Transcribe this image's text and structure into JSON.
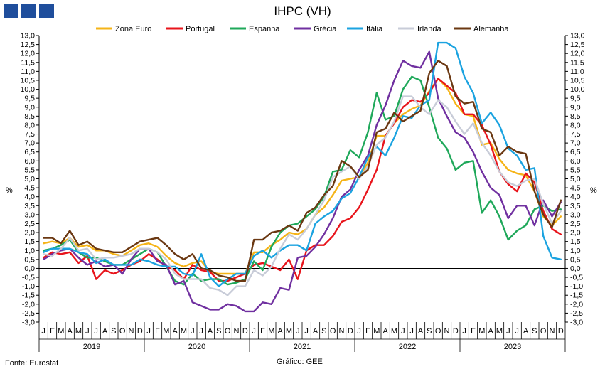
{
  "header": {
    "logo_blocks": 3,
    "logo_color": "#1f4e9c"
  },
  "footer": {
    "source": "Fonte: Eurostat",
    "credit": "Gráfico: GEE"
  },
  "chart_data": {
    "type": "line",
    "title": "IHPC (VH)",
    "ylabel": "%",
    "ylabel_right": "%",
    "ylim": [
      -3.0,
      13.0
    ],
    "ytick_step": 0.5,
    "y_tick_format": "comma_decimal_1",
    "grid": false,
    "legend_position": "top",
    "x_months": [
      "J",
      "F",
      "M",
      "A",
      "M",
      "J",
      "J",
      "A",
      "S",
      "O",
      "N",
      "D",
      "J",
      "F",
      "M",
      "A",
      "M",
      "J",
      "J",
      "A",
      "S",
      "O",
      "N",
      "D",
      "J",
      "F",
      "M",
      "A",
      "M",
      "J",
      "J",
      "A",
      "S",
      "O",
      "N",
      "D",
      "J",
      "F",
      "M",
      "A",
      "M",
      "J",
      "J",
      "A",
      "S",
      "O",
      "N",
      "D",
      "J",
      "F",
      "M",
      "A",
      "M",
      "J",
      "J",
      "A",
      "S",
      "O",
      "N",
      "D"
    ],
    "x_years": [
      "2019",
      "2020",
      "2021",
      "2022",
      "2023"
    ],
    "series": [
      {
        "name": "Zona Euro",
        "color": "#f5b418",
        "values": [
          1.4,
          1.5,
          1.4,
          1.7,
          1.2,
          1.3,
          1.0,
          1.0,
          0.8,
          0.7,
          1.0,
          1.3,
          1.4,
          1.2,
          0.7,
          0.3,
          0.1,
          0.3,
          0.4,
          -0.2,
          -0.3,
          -0.3,
          -0.3,
          -0.3,
          0.9,
          0.9,
          1.3,
          1.6,
          2.0,
          1.9,
          2.2,
          3.0,
          3.4,
          4.1,
          4.9,
          5.0,
          5.1,
          5.9,
          7.4,
          7.4,
          8.1,
          8.6,
          8.9,
          9.1,
          9.9,
          10.6,
          10.1,
          9.2,
          8.6,
          8.5,
          6.9,
          7.0,
          6.1,
          5.5,
          5.3,
          5.2,
          4.3,
          2.9,
          2.4,
          2.9
        ]
      },
      {
        "name": "Portugal",
        "color": "#e8141b",
        "values": [
          0.6,
          0.9,
          0.8,
          0.9,
          0.3,
          0.7,
          -0.6,
          -0.1,
          -0.3,
          -0.1,
          0.2,
          0.4,
          0.8,
          0.5,
          0.1,
          -0.1,
          -0.6,
          0.2,
          -0.1,
          -0.2,
          -0.7,
          -0.7,
          -0.5,
          -0.3,
          0.2,
          0.3,
          0.1,
          -0.1,
          0.5,
          -0.6,
          1.0,
          1.3,
          1.3,
          1.8,
          2.6,
          2.8,
          3.4,
          4.4,
          5.5,
          7.4,
          8.1,
          9.0,
          9.4,
          9.3,
          9.8,
          10.6,
          10.2,
          9.8,
          8.6,
          8.6,
          8.0,
          6.9,
          5.4,
          4.7,
          4.3,
          5.3,
          4.8,
          3.2,
          2.2,
          1.9
        ]
      },
      {
        "name": "Espanha",
        "color": "#1fa85a",
        "values": [
          1.0,
          1.1,
          1.3,
          1.6,
          0.9,
          0.6,
          0.6,
          0.4,
          0.2,
          0.2,
          0.5,
          0.8,
          1.1,
          0.9,
          0.1,
          -0.7,
          -0.9,
          -0.3,
          -0.7,
          -0.6,
          -0.6,
          -0.9,
          -0.8,
          -0.6,
          0.4,
          -0.1,
          1.2,
          2.0,
          2.4,
          2.5,
          2.9,
          3.3,
          4.0,
          5.4,
          5.5,
          6.6,
          6.2,
          7.6,
          9.8,
          8.3,
          8.5,
          10.0,
          10.7,
          10.5,
          9.0,
          7.3,
          6.7,
          5.5,
          5.9,
          6.0,
          3.1,
          3.8,
          2.9,
          1.6,
          2.1,
          2.4,
          3.3,
          3.5,
          3.2,
          3.3
        ]
      },
      {
        "name": "Grécia",
        "color": "#7030a0",
        "values": [
          0.5,
          0.8,
          1.0,
          1.1,
          0.6,
          0.2,
          0.4,
          0.1,
          0.2,
          -0.3,
          0.5,
          1.1,
          1.1,
          0.4,
          0.2,
          -0.9,
          -0.7,
          -1.9,
          -2.1,
          -2.3,
          -2.3,
          -2.0,
          -2.1,
          -2.4,
          -2.4,
          -1.9,
          -2.0,
          -1.1,
          -1.2,
          0.6,
          0.7,
          1.2,
          1.9,
          2.8,
          4.0,
          4.4,
          5.5,
          6.3,
          8.0,
          9.1,
          10.5,
          11.6,
          11.3,
          11.2,
          12.1,
          9.5,
          8.5,
          7.6,
          7.3,
          6.5,
          5.4,
          4.5,
          4.1,
          2.8,
          3.5,
          3.5,
          2.4,
          3.8,
          2.9,
          3.7
        ]
      },
      {
        "name": "Itália",
        "color": "#1ba3e0",
        "values": [
          0.9,
          1.1,
          1.1,
          1.1,
          0.9,
          0.8,
          0.3,
          0.5,
          0.2,
          0.2,
          0.2,
          0.5,
          0.4,
          0.2,
          0.1,
          0.1,
          -0.3,
          -0.4,
          0.8,
          -0.5,
          -1.0,
          -0.6,
          -0.3,
          -0.3,
          0.7,
          1.0,
          0.6,
          1.0,
          1.3,
          1.3,
          1.0,
          2.5,
          2.9,
          3.2,
          3.9,
          4.2,
          5.1,
          6.2,
          6.8,
          6.3,
          7.3,
          8.5,
          8.4,
          9.1,
          9.4,
          12.6,
          12.6,
          12.3,
          10.7,
          9.8,
          8.1,
          8.7,
          8.0,
          6.7,
          6.3,
          5.5,
          5.6,
          1.8,
          0.6,
          0.5
        ]
      },
      {
        "name": "Irlanda",
        "color": "#c8ccd8",
        "values": [
          0.8,
          0.7,
          1.1,
          1.7,
          1.0,
          1.1,
          0.5,
          0.6,
          0.6,
          0.7,
          0.8,
          1.1,
          1.1,
          0.9,
          0.5,
          -0.3,
          -0.6,
          -0.6,
          -0.6,
          -1.1,
          -1.2,
          -1.5,
          -1.0,
          -1.0,
          -0.1,
          -0.4,
          0.1,
          1.1,
          1.9,
          1.6,
          2.2,
          3.0,
          3.8,
          5.1,
          5.4,
          5.7,
          5.0,
          5.7,
          6.9,
          7.3,
          8.2,
          9.6,
          9.6,
          9.0,
          8.6,
          9.4,
          9.0,
          8.2,
          7.5,
          8.1,
          7.0,
          6.3,
          5.4,
          4.8,
          4.6,
          4.9,
          5.0,
          3.6,
          2.5,
          3.2
        ]
      },
      {
        "name": "Alemanha",
        "color": "#6b3812",
        "values": [
          1.7,
          1.7,
          1.4,
          2.1,
          1.3,
          1.5,
          1.1,
          1.0,
          0.9,
          0.9,
          1.2,
          1.5,
          1.6,
          1.7,
          1.3,
          0.8,
          0.5,
          0.8,
          0.0,
          -0.1,
          -0.4,
          -0.5,
          -0.7,
          -0.7,
          1.6,
          1.6,
          2.0,
          2.1,
          2.4,
          2.1,
          3.1,
          3.4,
          4.1,
          4.6,
          6.0,
          5.7,
          5.1,
          5.5,
          7.6,
          7.8,
          8.7,
          8.2,
          8.5,
          8.8,
          10.9,
          11.6,
          11.3,
          9.6,
          9.2,
          9.3,
          7.8,
          7.6,
          6.3,
          6.8,
          6.5,
          6.4,
          4.3,
          3.0,
          2.3,
          3.8
        ]
      }
    ]
  }
}
